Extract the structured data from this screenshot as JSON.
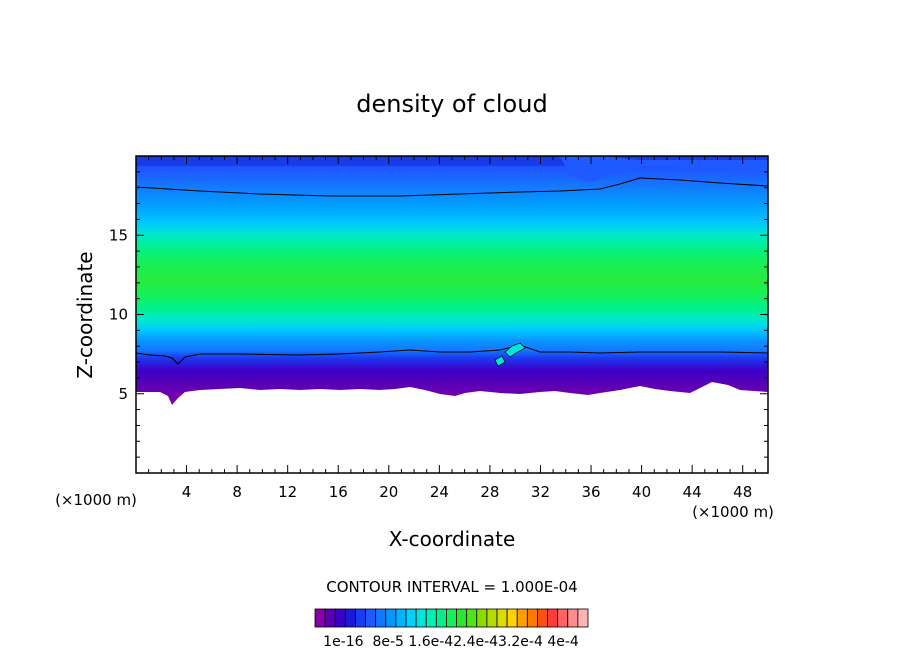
{
  "chart_data": {
    "type": "heatmap",
    "title": "density of cloud",
    "xlabel": "X-coordinate",
    "ylabel": "Z-coordinate",
    "x_unit_left": "(×1000 m)",
    "x_unit_right": "(×1000 m)",
    "xlim": [
      0,
      50
    ],
    "ylim": [
      0,
      20
    ],
    "x_ticks": [
      4,
      8,
      12,
      16,
      20,
      24,
      28,
      32,
      36,
      40,
      44,
      48
    ],
    "y_ticks": [
      5,
      10,
      15
    ],
    "contour_interval_text": "CONTOUR INTERVAL = 1.000E-04",
    "colorbar": {
      "labels": [
        "1e-16",
        "8e-5",
        "1.6e-4",
        "2.4e-4",
        "3.2e-4",
        "4e-4"
      ],
      "label_text": "1e-16  8e-5 1.6e-42.4e-43.2e-4 4e-4",
      "colors": [
        "#8800aa",
        "#5a00b4",
        "#3c00c8",
        "#1a1ad6",
        "#1a3cf0",
        "#1e5aff",
        "#1478ff",
        "#0a96ff",
        "#00b4ff",
        "#00d2ff",
        "#00e6dc",
        "#00f0b4",
        "#00f08c",
        "#14f05a",
        "#28e632",
        "#50e614",
        "#8cdc00",
        "#b4dc00",
        "#dcdc00",
        "#ffd200",
        "#ffa000",
        "#ff7800",
        "#ff5014",
        "#ff3c3c",
        "#ff6464",
        "#ff8c8c",
        "#ffb4b4"
      ]
    },
    "field_summary": {
      "cloud_base_z": 5.3,
      "cloud_top_z": 19.5,
      "max_density_band_z": [
        10,
        14
      ],
      "contour_line_z_top": 17.8,
      "contour_line_z_base": 7.5
    }
  }
}
